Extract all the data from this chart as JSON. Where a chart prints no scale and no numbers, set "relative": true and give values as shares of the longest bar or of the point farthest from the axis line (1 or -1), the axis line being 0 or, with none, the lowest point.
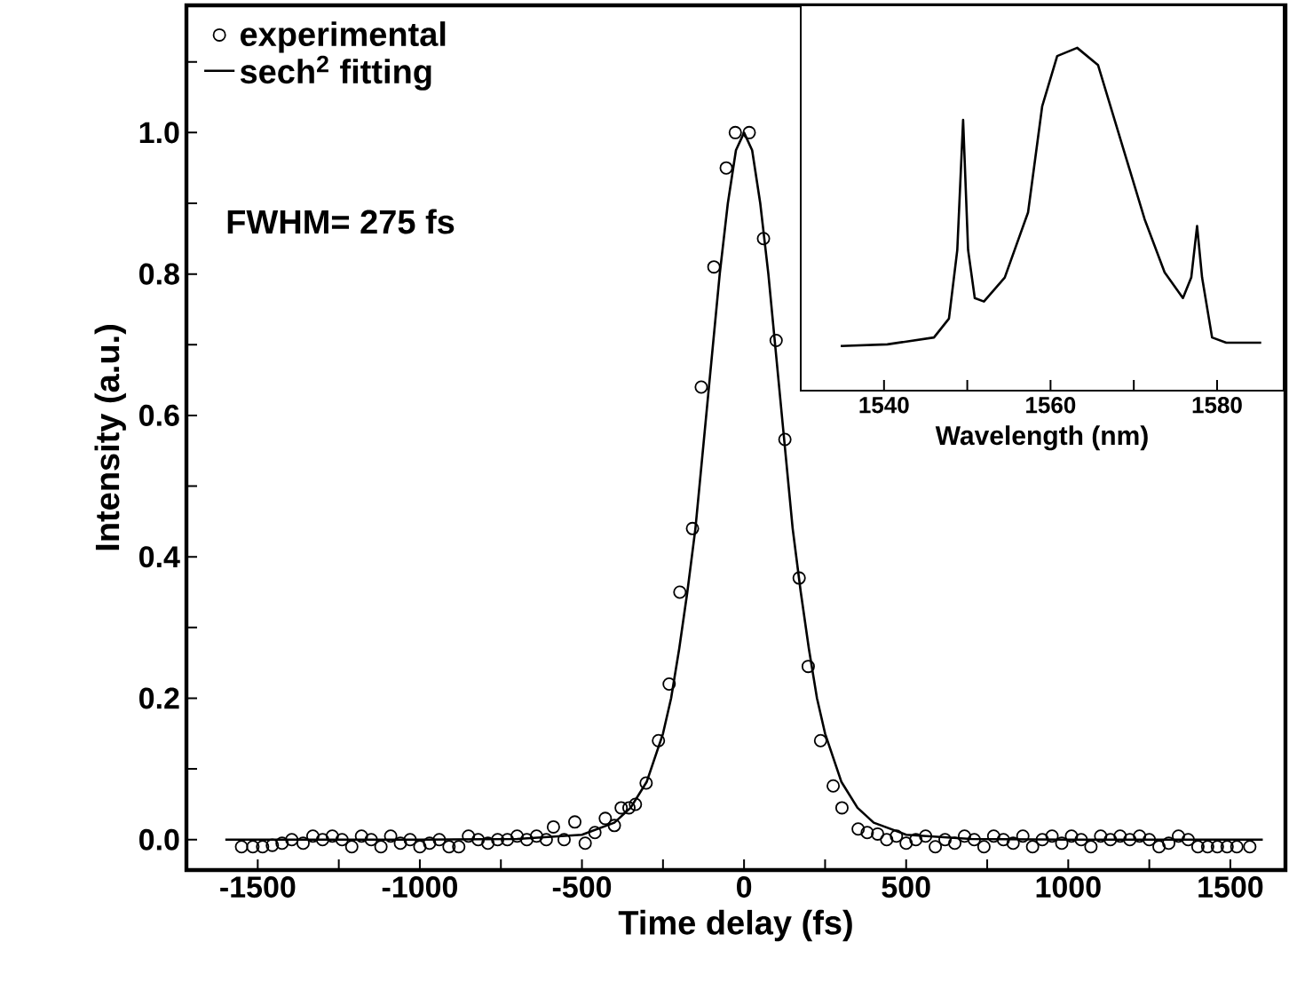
{
  "chart_data": [
    {
      "type": "scatter",
      "xlabel": "Time delay (fs)",
      "ylabel": "Intensity (a.u.)",
      "annotations": [
        "FWHM= 275 fs"
      ],
      "legend": "top left",
      "xlim": [
        -1720,
        1670
      ],
      "ylim": [
        -0.043,
        1.18
      ],
      "xticks": [
        -1500,
        {
          "value": -1250,
          "label": null
        },
        -1000,
        {
          "value": -750,
          "label": null
        },
        -500,
        {
          "value": -250,
          "label": null
        },
        0,
        {
          "value": 250,
          "label": null
        },
        500,
        {
          "value": 750,
          "label": null
        },
        1000,
        {
          "value": 1250,
          "label": null
        },
        1500
      ],
      "yticks": [
        {
          "value": 0,
          "label": "0.0"
        },
        {
          "value": 0.1,
          "label": null
        },
        {
          "value": 0.2,
          "label": "0.2"
        },
        {
          "value": 0.3,
          "label": null
        },
        {
          "value": 0.4,
          "label": "0.4"
        },
        {
          "value": 0.5,
          "label": null
        },
        {
          "value": 0.6,
          "label": "0.6"
        },
        {
          "value": 0.7,
          "label": null
        },
        {
          "value": 0.8,
          "label": "0.8"
        },
        {
          "value": 0.9,
          "label": null
        },
        {
          "value": 1.0,
          "label": "1.0"
        },
        {
          "value": 1.1,
          "label": null
        }
      ],
      "series": [
        {
          "name": "experimental",
          "type": "scatter",
          "marker": "circle",
          "color": "#000000",
          "x": [
            -1550,
            -1515,
            -1485,
            -1455,
            -1425,
            -1395,
            -1360,
            -1330,
            -1300,
            -1270,
            -1240,
            -1210,
            -1180,
            -1150,
            -1120,
            -1090,
            -1060,
            -1030,
            -1000,
            -970,
            -940,
            -910,
            -880,
            -850,
            -820,
            -790,
            -760,
            -730,
            -700,
            -670,
            -640,
            -610,
            -588,
            -555,
            -522,
            -490,
            -460,
            -428,
            -400,
            -379,
            -355,
            -335,
            -302,
            -264,
            -231,
            -198,
            -159,
            -132,
            -93,
            -55,
            -27,
            16,
            60,
            99,
            126,
            170,
            198,
            236,
            275,
            302,
            352,
            380,
            412,
            440,
            470,
            500,
            530,
            560,
            590,
            620,
            650,
            680,
            710,
            740,
            770,
            800,
            830,
            860,
            890,
            920,
            950,
            980,
            1010,
            1040,
            1070,
            1100,
            1130,
            1160,
            1190,
            1220,
            1250,
            1280,
            1310,
            1340,
            1370,
            1400,
            1430,
            1460,
            1490,
            1520,
            1560
          ],
          "values": [
            -0.01,
            -0.01,
            -0.01,
            -0.008,
            -0.005,
            0.0,
            -0.005,
            0.005,
            0.0,
            0.005,
            0.0,
            -0.01,
            0.005,
            0.0,
            -0.01,
            0.005,
            -0.005,
            0.0,
            -0.01,
            -0.005,
            0.0,
            -0.01,
            -0.01,
            0.005,
            0.0,
            -0.005,
            0.0,
            0.0,
            0.005,
            0.0,
            0.005,
            0.0,
            0.018,
            0.0,
            0.025,
            -0.005,
            0.01,
            0.03,
            0.02,
            0.045,
            0.045,
            0.05,
            0.08,
            0.14,
            0.22,
            0.35,
            0.44,
            0.64,
            0.81,
            0.95,
            1.0,
            1.0,
            0.85,
            0.706,
            0.566,
            0.37,
            0.245,
            0.14,
            0.076,
            0.045,
            0.015,
            0.01,
            0.008,
            0.0,
            0.005,
            -0.005,
            0.0,
            0.005,
            -0.01,
            0.0,
            -0.005,
            0.005,
            0.0,
            -0.01,
            0.005,
            0.0,
            -0.005,
            0.005,
            -0.01,
            0.0,
            0.005,
            -0.005,
            0.005,
            0.0,
            -0.01,
            0.005,
            0.0,
            0.005,
            0.0,
            0.005,
            0.0,
            -0.01,
            -0.005,
            0.005,
            0.0,
            -0.01,
            -0.01,
            -0.01,
            -0.01,
            -0.01,
            -0.01
          ]
        },
        {
          "name": "sech$^{2}$ fitting",
          "type": "line",
          "marker": "none",
          "color": "#000000",
          "x": [
            -1600,
            -1000,
            -700,
            -500,
            -400,
            -350,
            -300,
            -250,
            -225,
            -200,
            -175,
            -150,
            -125,
            -100,
            -75,
            -50,
            -25,
            0,
            25,
            50,
            75,
            100,
            125,
            150,
            175,
            200,
            225,
            250,
            300,
            350,
            400,
            500,
            700,
            1000,
            1600
          ],
          "values": [
            0,
            0,
            0.001,
            0.007,
            0.024,
            0.045,
            0.082,
            0.15,
            0.2,
            0.27,
            0.35,
            0.44,
            0.56,
            0.68,
            0.8,
            0.9,
            0.975,
            1.0,
            0.975,
            0.9,
            0.8,
            0.68,
            0.56,
            0.44,
            0.35,
            0.27,
            0.2,
            0.15,
            0.082,
            0.045,
            0.024,
            0.007,
            0.001,
            0,
            0
          ]
        }
      ]
    },
    {
      "type": "line",
      "relative": true,
      "tick_labels": "x",
      "xlabel": "Wavelength (nm)",
      "xlim": [
        1530,
        1588
      ],
      "xticks": [
        1540,
        {
          "value": 1550,
          "label": null
        },
        1560,
        {
          "value": 1570,
          "label": null
        },
        1580
      ],
      "series": [
        {
          "color": "#000000",
          "x": [
            1534.8,
            1540.4,
            1546.0,
            1547.8,
            1548.8,
            1549.5,
            1550.1,
            1550.9,
            1552.0,
            1554.5,
            1557.3,
            1559.0,
            1560.8,
            1563.2,
            1565.7,
            1568.5,
            1571.3,
            1573.7,
            1575.9,
            1576.9,
            1577.6,
            1578.2,
            1579.4,
            1581.1,
            1585.3
          ],
          "values": [
            0.13,
            0.135,
            0.155,
            0.21,
            0.41,
            0.79,
            0.41,
            0.27,
            0.26,
            0.33,
            0.52,
            0.83,
            0.976,
            1.0,
            0.95,
            0.725,
            0.5,
            0.345,
            0.27,
            0.33,
            0.48,
            0.33,
            0.155,
            0.14,
            0.14
          ]
        }
      ]
    }
  ]
}
